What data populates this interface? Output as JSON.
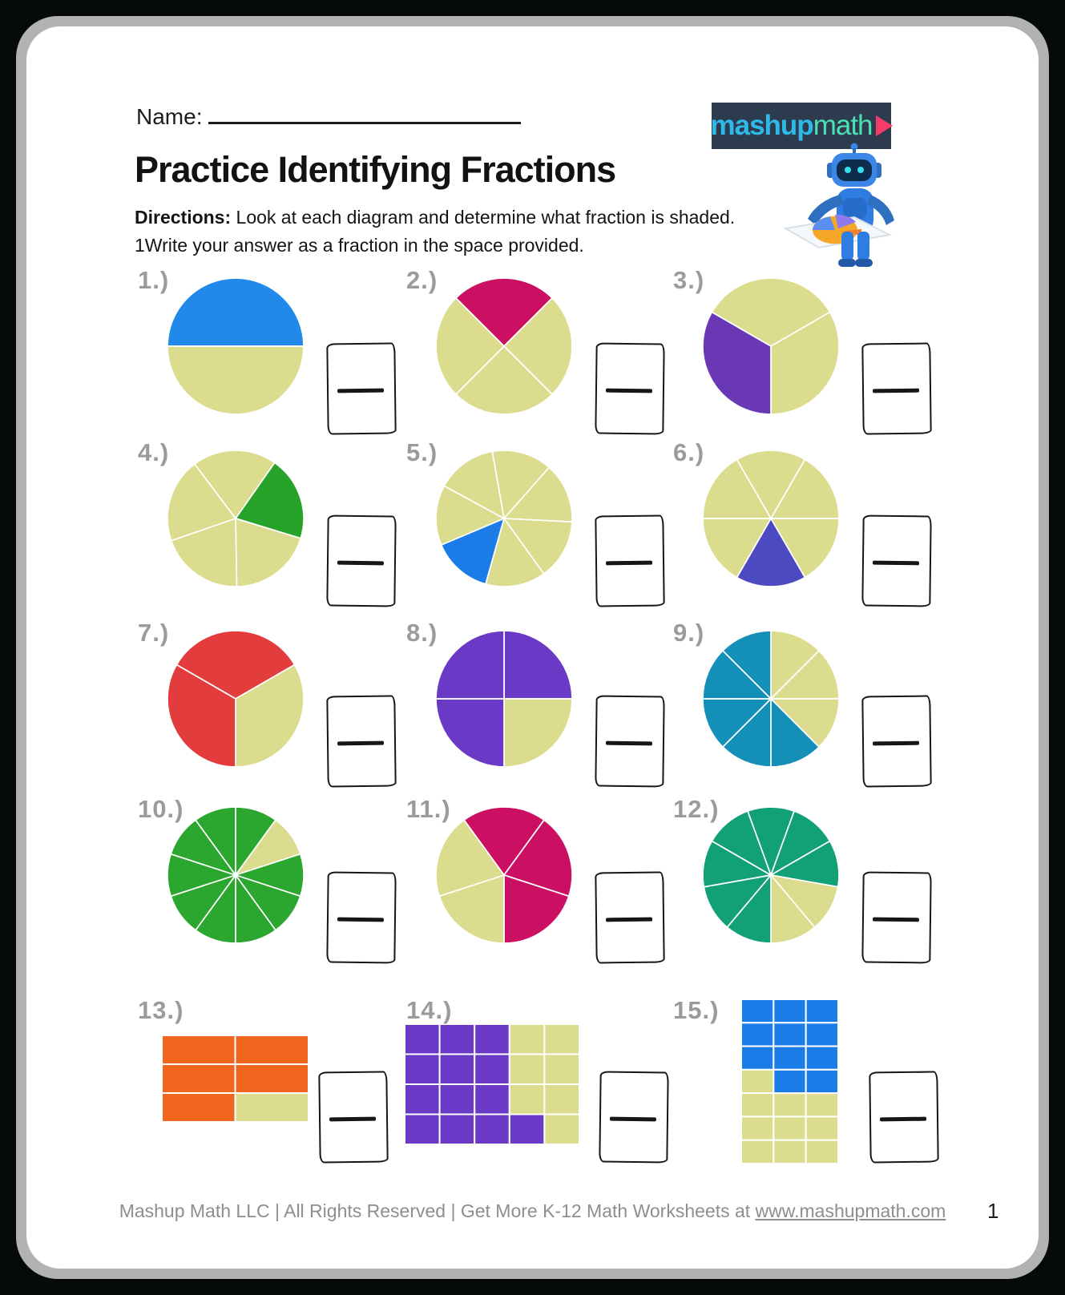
{
  "header": {
    "name_label": "Name:",
    "title": "Practice Identifying Fractions",
    "directions_label": "Directions:",
    "directions_line1": " Look at each diagram and determine what fraction is shaded.",
    "directions_line2": "1Write your answer as a fraction in the space provided."
  },
  "logo": {
    "text_mashup": "mashup",
    "text_math": "math",
    "bg_color": "#2c3b4d",
    "mashup_color": "#2fb9e9",
    "math_color": "#4ce0b4",
    "arrow_color": "#f43b69"
  },
  "footer": {
    "text": "Mashup Math LLC | All Rights Reserved | Get More K-12 Math Worksheets at ",
    "link": "www.mashupmath.com",
    "page_number": "1"
  },
  "figure_style": {
    "unshaded_color": "#dbdc8e",
    "divider_color": "#ffffff",
    "label_color": "#9b9b9b"
  },
  "chart_data": [
    {
      "label": "1.)",
      "type": "pie",
      "parts": 2,
      "shaded_count": 1,
      "start_angle": 180,
      "shaded_slices": [
        0
      ],
      "shaded_color": "#2089ea"
    },
    {
      "label": "2.)",
      "type": "pie",
      "parts": 4,
      "shaded_count": 1,
      "start_angle": 135,
      "shaded_slices": [
        0
      ],
      "shaded_color": "#cb0f63"
    },
    {
      "label": "3.)",
      "type": "pie",
      "parts": 3,
      "shaded_count": 1,
      "start_angle": 150,
      "shaded_slices": [
        2
      ],
      "shaded_color": "#6a38b5"
    },
    {
      "label": "4.)",
      "type": "pie",
      "parts": 5,
      "shaded_count": 1,
      "start_angle": 127,
      "shaded_slices": [
        1
      ],
      "shaded_color": "#28a32a"
    },
    {
      "label": "5.)",
      "type": "pie",
      "parts": 7,
      "shaded_count": 1,
      "start_angle": 100,
      "shaded_slices": [
        4
      ],
      "shaded_color": "#1b7ce8"
    },
    {
      "label": "6.)",
      "type": "pie",
      "parts": 6,
      "shaded_count": 1,
      "start_angle": 120,
      "shaded_slices": [
        3
      ],
      "shaded_color": "#4b4ac1"
    },
    {
      "label": "7.)",
      "type": "pie",
      "parts": 3,
      "shaded_count": 2,
      "start_angle": 150,
      "shaded_slices": [
        0,
        2
      ],
      "shaded_color": "#e23c3c"
    },
    {
      "label": "8.)",
      "type": "pie",
      "parts": 4,
      "shaded_count": 3,
      "start_angle": 90,
      "shaded_slices": [
        0,
        2,
        3
      ],
      "shaded_color": "#6a39c6"
    },
    {
      "label": "9.)",
      "type": "pie",
      "parts": 8,
      "shaded_count": 5,
      "start_angle": 90,
      "shaded_slices": [
        3,
        4,
        5,
        6,
        7
      ],
      "shaded_color": "#148fb8"
    },
    {
      "label": "10.)",
      "type": "pie",
      "parts": 10,
      "shaded_count": 9,
      "start_angle": 90,
      "shaded_slices": [
        0,
        2,
        3,
        4,
        5,
        6,
        7,
        8,
        9
      ],
      "shaded_color": "#2ba72f"
    },
    {
      "label": "11.)",
      "type": "pie",
      "parts": 5,
      "shaded_count": 3,
      "start_angle": 126,
      "shaded_slices": [
        0,
        1,
        2
      ],
      "shaded_color": "#cb0f63"
    },
    {
      "label": "12.)",
      "type": "pie",
      "parts": 9,
      "shaded_count": 7,
      "start_angle": 110,
      "shaded_slices": [
        0,
        1,
        2,
        5,
        6,
        7,
        8
      ],
      "shaded_color": "#12a077"
    },
    {
      "label": "13.)",
      "type": "grid",
      "cols": 2,
      "rows": 3,
      "parts": 6,
      "shaded_count": 5,
      "shaded_cells": [
        0,
        1,
        2,
        3,
        4
      ],
      "shaded_color": "#f1661e",
      "fig_w": 183,
      "fig_h": 108
    },
    {
      "label": "14.)",
      "type": "grid",
      "cols": 5,
      "rows": 4,
      "parts": 20,
      "shaded_count": 13,
      "shaded_cells": [
        0,
        1,
        2,
        5,
        6,
        7,
        10,
        11,
        12,
        15,
        16,
        17,
        18
      ],
      "shaded_color": "#6a39c6",
      "fig_w": 218,
      "fig_h": 150
    },
    {
      "label": "15.)",
      "type": "grid",
      "cols": 3,
      "rows": 7,
      "parts": 21,
      "shaded_count": 11,
      "shaded_cells": [
        0,
        1,
        2,
        3,
        4,
        5,
        6,
        7,
        8,
        10,
        11
      ],
      "shaded_color": "#1b7ce8",
      "fig_w": 121,
      "fig_h": 205
    }
  ]
}
